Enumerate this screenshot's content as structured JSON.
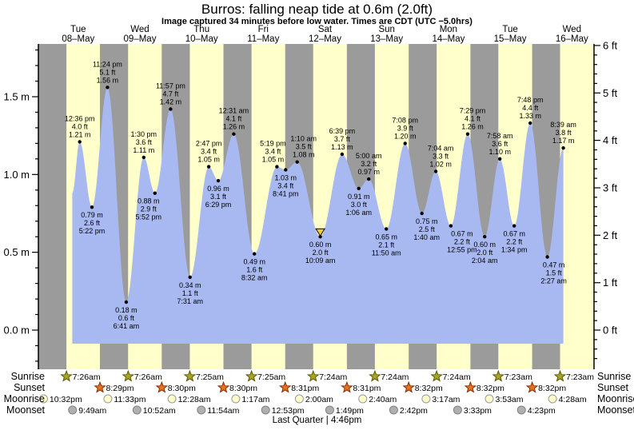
{
  "title": "Burros: falling  neap tide at 0.6m (2.0ft)",
  "subtitle": "Image captured 34 minutes before low water. Times are CDT (UTC −5.0hrs)",
  "colors": {
    "night_band": "#9b9b9b",
    "day_band": "#ffffcc",
    "water": "#a8b8f0",
    "day_label": "#ff0000",
    "axis": "#000000",
    "sunrise_star": "#a8a428",
    "sunrise_star_stroke": "#5a5a00",
    "sunset_star": "#e8721c",
    "sunset_star_stroke": "#8a2c00",
    "moonrise_dot": "#ffffcc",
    "moonrise_dot_stroke": "#999999",
    "moonset_dot": "#b0b0b0",
    "moonset_dot_stroke": "#808080",
    "marker": "#edc938"
  },
  "chart_data": {
    "type": "area",
    "title": "Burros: falling  neap tide at 0.6m (2.0ft)",
    "ylim_m": [
      -0.22,
      1.84
    ],
    "y_axis_left": {
      "unit": "m",
      "tick_labels": [
        "0.0 m",
        "0.5 m",
        "1.0 m",
        "1.5 m"
      ],
      "tick_values": [
        0.0,
        0.5,
        1.0,
        1.5
      ]
    },
    "y_axis_right": {
      "unit": "ft",
      "tick_labels": [
        "0 ft",
        "1 ft",
        "2 ft",
        "3 ft",
        "4 ft",
        "5 ft",
        "6 ft"
      ],
      "tick_values": [
        0,
        1,
        2,
        3,
        4,
        5,
        6
      ]
    },
    "x_axis": {
      "days": [
        {
          "name": "Tue",
          "date": "08–May"
        },
        {
          "name": "Wed",
          "date": "09–May"
        },
        {
          "name": "Thu",
          "date": "10–May"
        },
        {
          "name": "Fri",
          "date": "11–May"
        },
        {
          "name": "Sat",
          "date": "12–May"
        },
        {
          "name": "Sun",
          "date": "13–May"
        },
        {
          "name": "Mon",
          "date": "14–May"
        },
        {
          "name": "Tue",
          "date": "15–May"
        },
        {
          "name": "Wed",
          "date": "16–May"
        }
      ]
    },
    "events": [
      {
        "day": 0,
        "type": "high",
        "time": "12:36 pm",
        "height_ft": "4.0 ft",
        "height_m": "1.21 m"
      },
      {
        "day": 0,
        "type": "low",
        "time": "5:22 pm",
        "height_ft": "2.6 ft",
        "height_m": "0.79 m"
      },
      {
        "day": 0,
        "type": "high",
        "time": "11:24 pm",
        "height_ft": "5.1 ft",
        "height_m": "1.56 m"
      },
      {
        "day": 1,
        "type": "low",
        "time": "6:41 am",
        "height_ft": "0.6 ft",
        "height_m": "0.18 m"
      },
      {
        "day": 1,
        "type": "high",
        "time": "1:30 pm",
        "height_ft": "3.6 ft",
        "height_m": "1.11 m"
      },
      {
        "day": 1,
        "type": "low",
        "time": "5:52 pm",
        "height_ft": "2.9 ft",
        "height_m": "0.88 m"
      },
      {
        "day": 1,
        "type": "high",
        "time": "11:57 pm",
        "height_ft": "4.7 ft",
        "height_m": "1.42 m"
      },
      {
        "day": 2,
        "type": "low",
        "time": "7:31 am",
        "height_ft": "1.1 ft",
        "height_m": "0.34 m"
      },
      {
        "day": 2,
        "type": "high",
        "time": "2:47 pm",
        "height_ft": "3.4 ft",
        "height_m": "1.05 m"
      },
      {
        "day": 2,
        "type": "low",
        "time": "6:29 pm",
        "height_ft": "3.1 ft",
        "height_m": "0.96 m"
      },
      {
        "day": 3,
        "type": "high",
        "time": "12:31 am",
        "height_ft": "4.1 ft",
        "height_m": "1.26 m"
      },
      {
        "day": 3,
        "type": "low",
        "time": "8:32 am",
        "height_ft": "1.6 ft",
        "height_m": "0.49 m"
      },
      {
        "day": 3,
        "type": "high",
        "time": "5:19 pm",
        "height_ft": "3.4 ft",
        "height_m": "1.05 m"
      },
      {
        "day": 3,
        "type": "low",
        "time": "8:41 pm",
        "height_ft": "3.4 ft",
        "height_m": "1.03 m"
      },
      {
        "day": 4,
        "type": "high",
        "time": "1:10 am",
        "height_ft": "3.5 ft",
        "height_m": "1.08 m"
      },
      {
        "day": 4,
        "type": "low",
        "time": "10:09 am",
        "height_ft": "2.0 ft",
        "height_m": "0.60 m"
      },
      {
        "day": 4,
        "type": "high",
        "time": "6:39 pm",
        "height_ft": "3.7 ft",
        "height_m": "1.13 m"
      },
      {
        "day": 5,
        "type": "low",
        "time": "1:06 am",
        "height_ft": "3.0 ft",
        "height_m": "0.91 m"
      },
      {
        "day": 5,
        "type": "high",
        "time": "5:00 am",
        "height_ft": "3.2 ft",
        "height_m": "0.97 m"
      },
      {
        "day": 5,
        "type": "low",
        "time": "11:50 am",
        "height_ft": "2.1 ft",
        "height_m": "0.65 m"
      },
      {
        "day": 5,
        "type": "high",
        "time": "7:08 pm",
        "height_ft": "3.9 ft",
        "height_m": "1.20 m"
      },
      {
        "day": 6,
        "type": "low",
        "time": "1:40 am",
        "height_ft": "2.5 ft",
        "height_m": "0.75 m"
      },
      {
        "day": 6,
        "type": "high",
        "time": "7:04 am",
        "height_ft": "3.3 ft",
        "height_m": "1.02 m"
      },
      {
        "day": 6,
        "type": "low",
        "time": "12:55 pm",
        "height_ft": "2.2 ft",
        "height_m": "0.67 m"
      },
      {
        "day": 6,
        "type": "high",
        "time": "7:29 pm",
        "height_ft": "4.1 ft",
        "height_m": "1.26 m"
      },
      {
        "day": 7,
        "type": "low",
        "time": "2:04 am",
        "height_ft": "2.0 ft",
        "height_m": "0.60 m"
      },
      {
        "day": 7,
        "type": "high",
        "time": "7:58 am",
        "height_ft": "3.6 ft",
        "height_m": "1.10 m"
      },
      {
        "day": 7,
        "type": "low",
        "time": "1:34 pm",
        "height_ft": "2.2 ft",
        "height_m": "0.67 m"
      },
      {
        "day": 7,
        "type": "high",
        "time": "7:48 pm",
        "height_ft": "4.4 ft",
        "height_m": "1.33 m"
      },
      {
        "day": 8,
        "type": "low",
        "time": "2:27 am",
        "height_ft": "1.5 ft",
        "height_m": "0.47 m"
      },
      {
        "day": 8,
        "type": "high",
        "time": "8:39 am",
        "height_ft": "3.8 ft",
        "height_m": "1.17 m"
      }
    ],
    "current_event_index": 15
  },
  "sun_moon": {
    "rows": [
      {
        "label": "Sunrise",
        "icon": "sunrise-star-icon",
        "entries": [
          {
            "day": 0,
            "time": "7:26am"
          },
          {
            "day": 1,
            "time": "7:26am"
          },
          {
            "day": 2,
            "time": "7:25am"
          },
          {
            "day": 3,
            "time": "7:25am"
          },
          {
            "day": 4,
            "time": "7:24am"
          },
          {
            "day": 5,
            "time": "7:24am"
          },
          {
            "day": 6,
            "time": "7:24am"
          },
          {
            "day": 7,
            "time": "7:23am"
          },
          {
            "day": 8,
            "time": "7:23am"
          }
        ]
      },
      {
        "label": "Sunset",
        "icon": "sunset-star-icon",
        "entries": [
          {
            "day": 0,
            "time": "8:29pm"
          },
          {
            "day": 1,
            "time": "8:30pm"
          },
          {
            "day": 2,
            "time": "8:30pm"
          },
          {
            "day": 3,
            "time": "8:31pm"
          },
          {
            "day": 4,
            "time": "8:31pm"
          },
          {
            "day": 5,
            "time": "8:32pm"
          },
          {
            "day": 6,
            "time": "8:32pm"
          },
          {
            "day": 7,
            "time": "8:32pm"
          }
        ]
      },
      {
        "label": "Moonrise",
        "icon": "moonrise-circle-icon",
        "entries": [
          {
            "day": -1,
            "time": "10:32pm"
          },
          {
            "day": 0,
            "time": "11:33pm"
          },
          {
            "day": 2,
            "time": "12:28am"
          },
          {
            "day": 3,
            "time": "1:17am"
          },
          {
            "day": 4,
            "time": "2:00am"
          },
          {
            "day": 5,
            "time": "2:40am"
          },
          {
            "day": 6,
            "time": "3:17am"
          },
          {
            "day": 7,
            "time": "3:53am"
          },
          {
            "day": 8,
            "time": "4:28am"
          }
        ]
      },
      {
        "label": "Moonset",
        "icon": "moonset-circle-icon",
        "entries": [
          {
            "day": 0,
            "time": "9:49am"
          },
          {
            "day": 1,
            "time": "10:52am"
          },
          {
            "day": 2,
            "time": "11:54am"
          },
          {
            "day": 3,
            "time": "12:53pm"
          },
          {
            "day": 4,
            "time": "1:49pm"
          },
          {
            "day": 5,
            "time": "2:42pm"
          },
          {
            "day": 6,
            "time": "3:33pm"
          },
          {
            "day": 7,
            "time": "4:23pm"
          }
        ]
      }
    ],
    "moon_phase": "Last Quarter | 4:46pm"
  }
}
